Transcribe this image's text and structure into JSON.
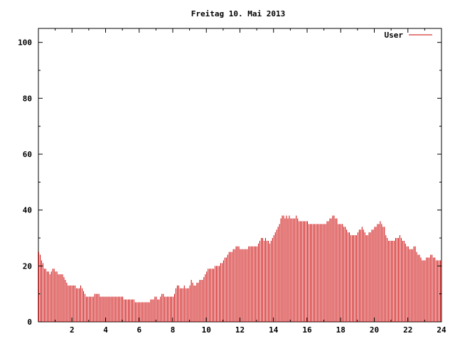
{
  "chart_data": {
    "type": "bar",
    "title": "Freitag 10. Mai 2013",
    "xlabel": "",
    "ylabel": "",
    "xlim": [
      0,
      24
    ],
    "ylim": [
      0,
      105
    ],
    "x_ticks": [
      "2",
      "4",
      "6",
      "8",
      "10",
      "12",
      "14",
      "16",
      "18",
      "20",
      "22",
      "24"
    ],
    "y_ticks": [
      "0",
      "20",
      "40",
      "60",
      "80",
      "100"
    ],
    "grid": false,
    "legend": "top-right",
    "bar_color": "#cc0000",
    "series": [
      {
        "name": "User",
        "interval_minutes": 5,
        "values": [
          25,
          24,
          22,
          21,
          19,
          19,
          18,
          18,
          17,
          18,
          19,
          19,
          18,
          18,
          17,
          17,
          17,
          17,
          16,
          15,
          14,
          13,
          13,
          13,
          13,
          13,
          13,
          12,
          12,
          12,
          13,
          12,
          11,
          10,
          9,
          9,
          9,
          9,
          9,
          9,
          10,
          10,
          10,
          10,
          9,
          9,
          9,
          9,
          9,
          9,
          9,
          9,
          9,
          9,
          9,
          9,
          9,
          9,
          9,
          9,
          9,
          8,
          8,
          8,
          8,
          8,
          8,
          8,
          8,
          7,
          7,
          7,
          7,
          7,
          7,
          7,
          7,
          7,
          7,
          7,
          8,
          8,
          8,
          9,
          9,
          8,
          8,
          9,
          10,
          10,
          9,
          9,
          9,
          9,
          9,
          9,
          9,
          10,
          12,
          13,
          13,
          12,
          12,
          12,
          13,
          12,
          12,
          12,
          13,
          15,
          14,
          13,
          13,
          14,
          14,
          15,
          15,
          15,
          16,
          17,
          18,
          19,
          19,
          19,
          19,
          19,
          20,
          20,
          20,
          20,
          21,
          21,
          22,
          23,
          23,
          24,
          25,
          25,
          25,
          26,
          26,
          27,
          27,
          27,
          26,
          26,
          26,
          26,
          26,
          26,
          27,
          27,
          27,
          27,
          27,
          27,
          27,
          28,
          29,
          30,
          30,
          29,
          30,
          29,
          29,
          28,
          29,
          30,
          31,
          32,
          33,
          34,
          35,
          37,
          38,
          38,
          37,
          38,
          37,
          38,
          37,
          37,
          37,
          37,
          38,
          37,
          36,
          36,
          36,
          36,
          36,
          36,
          36,
          35,
          35,
          35,
          35,
          35,
          35,
          35,
          35,
          35,
          35,
          35,
          35,
          35,
          36,
          36,
          37,
          37,
          38,
          38,
          37,
          37,
          35,
          35,
          35,
          35,
          34,
          34,
          33,
          32,
          32,
          31,
          31,
          31,
          31,
          31,
          32,
          33,
          33,
          34,
          33,
          32,
          31,
          31,
          32,
          32,
          33,
          33,
          34,
          34,
          35,
          35,
          36,
          35,
          34,
          34,
          31,
          30,
          29,
          29,
          29,
          29,
          29,
          30,
          30,
          30,
          31,
          30,
          29,
          29,
          28,
          27,
          27,
          26,
          26,
          26,
          27,
          27,
          25,
          24,
          24,
          23,
          22,
          22,
          22,
          23,
          23,
          23,
          24,
          24,
          23,
          23,
          22,
          22,
          22,
          22
        ]
      }
    ]
  }
}
